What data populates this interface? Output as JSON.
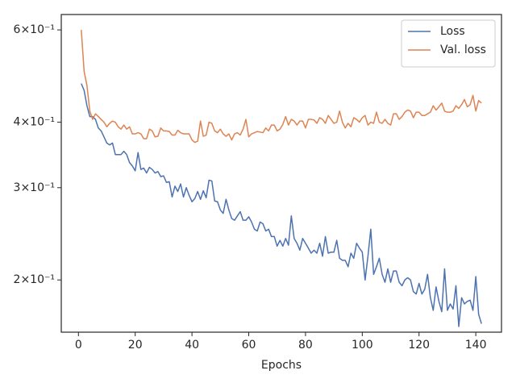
{
  "chart_data": {
    "type": "line",
    "xlabel": "Epochs",
    "x": [
      1,
      2,
      3,
      4,
      5,
      6,
      7,
      8,
      9,
      10,
      11,
      12,
      13,
      14,
      15,
      16,
      17,
      18,
      19,
      20,
      21,
      22,
      23,
      24,
      25,
      26,
      27,
      28,
      29,
      30,
      31,
      32,
      33,
      34,
      35,
      36,
      37,
      38,
      39,
      40,
      41,
      42,
      43,
      44,
      45,
      46,
      47,
      48,
      49,
      50,
      51,
      52,
      53,
      54,
      55,
      56,
      57,
      58,
      59,
      60,
      61,
      62,
      63,
      64,
      65,
      66,
      67,
      68,
      69,
      70,
      71,
      72,
      73,
      74,
      75,
      76,
      77,
      78,
      79,
      80,
      81,
      82,
      83,
      84,
      85,
      86,
      87,
      88,
      89,
      90,
      91,
      92,
      93,
      94,
      95,
      96,
      97,
      98,
      99,
      100,
      101,
      102,
      103,
      104,
      105,
      106,
      107,
      108,
      109,
      110,
      111,
      112,
      113,
      114,
      115,
      116,
      117,
      118,
      119,
      120,
      121,
      122,
      123,
      124,
      125,
      126,
      127,
      128,
      129,
      130,
      131,
      132,
      133,
      134,
      135,
      136,
      137,
      138,
      139,
      140,
      141,
      142
    ],
    "series": [
      {
        "name": "Loss",
        "color": "#4c72b0",
        "values": [
          0.474,
          0.46,
          0.43,
          0.41,
          0.41,
          0.405,
          0.39,
          0.385,
          0.375,
          0.365,
          0.362,
          0.365,
          0.347,
          0.347,
          0.347,
          0.352,
          0.347,
          0.335,
          0.33,
          0.323,
          0.35,
          0.325,
          0.327,
          0.32,
          0.328,
          0.325,
          0.32,
          0.322,
          0.315,
          0.316,
          0.307,
          0.308,
          0.288,
          0.302,
          0.295,
          0.305,
          0.288,
          0.3,
          0.29,
          0.282,
          0.286,
          0.295,
          0.285,
          0.296,
          0.287,
          0.31,
          0.309,
          0.283,
          0.282,
          0.272,
          0.268,
          0.285,
          0.272,
          0.262,
          0.26,
          0.265,
          0.27,
          0.26,
          0.26,
          0.264,
          0.258,
          0.25,
          0.248,
          0.258,
          0.256,
          0.248,
          0.25,
          0.242,
          0.242,
          0.232,
          0.238,
          0.232,
          0.24,
          0.233,
          0.265,
          0.24,
          0.235,
          0.228,
          0.24,
          0.235,
          0.23,
          0.225,
          0.228,
          0.225,
          0.235,
          0.222,
          0.242,
          0.225,
          0.226,
          0.226,
          0.238,
          0.22,
          0.218,
          0.218,
          0.212,
          0.225,
          0.22,
          0.235,
          0.23,
          0.226,
          0.2,
          0.222,
          0.25,
          0.205,
          0.212,
          0.22,
          0.205,
          0.198,
          0.21,
          0.198,
          0.208,
          0.208,
          0.198,
          0.195,
          0.2,
          0.202,
          0.2,
          0.19,
          0.188,
          0.197,
          0.188,
          0.192,
          0.205,
          0.185,
          0.175,
          0.194,
          0.182,
          0.174,
          0.21,
          0.175,
          0.18,
          0.176,
          0.195,
          0.163,
          0.185,
          0.18,
          0.182,
          0.183,
          0.175,
          0.203,
          0.172,
          0.165
        ]
      },
      {
        "name": "Val. loss",
        "color": "#dd8452",
        "values": [
          0.6,
          0.5,
          0.47,
          0.42,
          0.405,
          0.415,
          0.41,
          0.405,
          0.4,
          0.392,
          0.398,
          0.402,
          0.4,
          0.392,
          0.388,
          0.395,
          0.388,
          0.392,
          0.38,
          0.38,
          0.382,
          0.38,
          0.372,
          0.372,
          0.388,
          0.385,
          0.375,
          0.376,
          0.39,
          0.385,
          0.385,
          0.384,
          0.378,
          0.378,
          0.386,
          0.382,
          0.38,
          0.38,
          0.38,
          0.37,
          0.366,
          0.368,
          0.402,
          0.376,
          0.378,
          0.4,
          0.398,
          0.385,
          0.382,
          0.388,
          0.38,
          0.376,
          0.38,
          0.37,
          0.38,
          0.382,
          0.378,
          0.388,
          0.405,
          0.375,
          0.38,
          0.382,
          0.384,
          0.383,
          0.382,
          0.39,
          0.385,
          0.395,
          0.395,
          0.385,
          0.388,
          0.396,
          0.41,
          0.395,
          0.405,
          0.402,
          0.395,
          0.402,
          0.402,
          0.39,
          0.405,
          0.405,
          0.404,
          0.398,
          0.408,
          0.405,
          0.398,
          0.412,
          0.405,
          0.398,
          0.4,
          0.42,
          0.4,
          0.39,
          0.398,
          0.392,
          0.408,
          0.405,
          0.4,
          0.408,
          0.412,
          0.395,
          0.4,
          0.398,
          0.418,
          0.4,
          0.398,
          0.405,
          0.398,
          0.395,
          0.415,
          0.415,
          0.405,
          0.41,
          0.418,
          0.422,
          0.42,
          0.408,
          0.418,
          0.418,
          0.412,
          0.412,
          0.415,
          0.418,
          0.43,
          0.422,
          0.428,
          0.435,
          0.42,
          0.418,
          0.418,
          0.42,
          0.43,
          0.425,
          0.432,
          0.442,
          0.428,
          0.432,
          0.45,
          0.42,
          0.44,
          0.435
        ]
      }
    ],
    "xlim": [
      -6.05,
      149.05
    ],
    "ylim": [
      0.159,
      0.642
    ],
    "yscale": "log",
    "xticks": [
      0,
      20,
      40,
      60,
      80,
      100,
      120,
      140
    ],
    "yticks": [
      {
        "value": 0.2,
        "label": "2×10⁻¹"
      },
      {
        "value": 0.3,
        "label": "3×10⁻¹"
      },
      {
        "value": 0.4,
        "label": "4×10⁻¹"
      },
      {
        "value": 0.6,
        "label": "6×10⁻¹"
      }
    ],
    "legend": "upper right"
  }
}
